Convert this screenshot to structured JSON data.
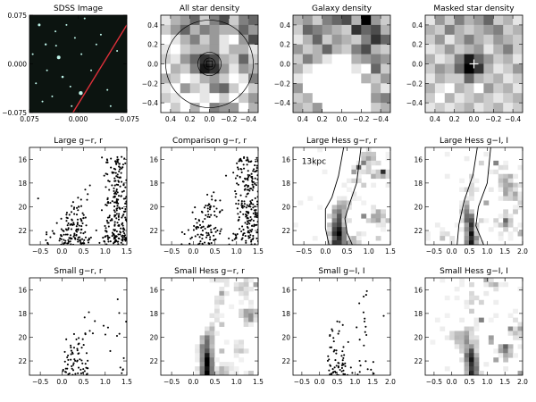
{
  "figure": {
    "annotation": "13kpc",
    "colors": {
      "ink": "#000000",
      "sdss_bg": "#0c1410",
      "sdss_star": "#bff5ea",
      "sdss_track": "#e0303a"
    }
  },
  "chart_data": [
    {
      "id": "sdss",
      "type": "image",
      "title": "SDSS Image",
      "xlim": [
        0.075,
        -0.075
      ],
      "ylim": [
        -0.075,
        0.075
      ],
      "xticks": [
        "0.075",
        "0.000",
        "-0.075"
      ],
      "yticks": [
        "-0.075",
        "0.000",
        "0.075"
      ],
      "stars": [
        [
          0.06,
          0.06,
          1.5
        ],
        [
          0.035,
          0.05,
          1
        ],
        [
          -0.01,
          0.07,
          1
        ],
        [
          0.05,
          0.03,
          1.2
        ],
        [
          0.03,
          0.01,
          2
        ],
        [
          0.005,
          0.04,
          1
        ],
        [
          -0.035,
          0.045,
          1
        ],
        [
          0.048,
          -0.01,
          1
        ],
        [
          0.024,
          -0.02,
          1.3
        ],
        [
          0.034,
          0.028,
          1
        ],
        [
          0.065,
          -0.03,
          1
        ],
        [
          -0.005,
          0.015,
          1
        ],
        [
          -0.02,
          -0.01,
          1
        ],
        [
          -0.004,
          -0.045,
          2.2
        ],
        [
          -0.045,
          -0.04,
          1
        ],
        [
          0.055,
          -0.058,
          1
        ],
        [
          0.012,
          -0.035,
          1
        ],
        [
          -0.06,
          0.02,
          1
        ],
        [
          0.04,
          -0.05,
          1
        ],
        [
          0.018,
          0.06,
          1
        ],
        [
          -0.028,
          0.03,
          1
        ],
        [
          0.07,
          0.015,
          1
        ],
        [
          -0.05,
          -0.065,
          1
        ],
        [
          0.01,
          -0.065,
          1
        ]
      ],
      "track": [
        [
          0.008,
          -0.075
        ],
        [
          -0.075,
          0.06
        ]
      ]
    },
    {
      "id": "allstar",
      "type": "heatmap",
      "title": "All star density",
      "xlim": [
        0.5,
        -0.5
      ],
      "ylim": [
        -0.5,
        0.5
      ],
      "xticks": [
        0.4,
        0.2,
        0.0,
        -0.2,
        -0.4
      ],
      "yticks": [
        -0.4,
        -0.2,
        0.0,
        0.2,
        0.4
      ],
      "values": [
        [
          0.1,
          0.3,
          0.4,
          0.6,
          0.2,
          0.5,
          0.7,
          0.2,
          0.5,
          0.6
        ],
        [
          0.2,
          0.4,
          0.6,
          0.3,
          0.5,
          0.4,
          0.3,
          0.3,
          0.6,
          0.4
        ],
        [
          0.0,
          0.1,
          0.3,
          0.5,
          0.2,
          0.4,
          0.1,
          0.0,
          0.4,
          0.7
        ],
        [
          0.1,
          0.0,
          0.2,
          0.3,
          0.3,
          0.4,
          0.1,
          0.3,
          0.3,
          0.1
        ],
        [
          0.2,
          0.1,
          0.4,
          0.6,
          0.8,
          0.7,
          0.3,
          0.2,
          0.6,
          0.2
        ],
        [
          0.0,
          0.3,
          0.2,
          0.5,
          0.9,
          0.8,
          0.4,
          0.1,
          0.4,
          0.3
        ],
        [
          0.3,
          0.2,
          0.0,
          0.1,
          0.3,
          0.4,
          0.2,
          0.0,
          0.1,
          0.5
        ],
        [
          0.1,
          0.0,
          0.4,
          0.2,
          0.1,
          0.5,
          0.6,
          0.2,
          0.0,
          0.2
        ],
        [
          0.2,
          0.1,
          0.0,
          0.0,
          0.1,
          0.0,
          0.2,
          0.0,
          0.2,
          0.4
        ],
        [
          0.0,
          0.2,
          0.0,
          0.3,
          0.0,
          0.5,
          0.4,
          0.4,
          0.0,
          0.3
        ]
      ],
      "circles": [
        0.06,
        0.12,
        0.45
      ],
      "box": 0.03
    },
    {
      "id": "galaxy",
      "type": "heatmap",
      "title": "Galaxy density",
      "xlim": [
        0.5,
        -0.5
      ],
      "ylim": [
        -0.5,
        0.5
      ],
      "xticks": [
        0.4,
        0.2,
        0.0,
        -0.2,
        -0.4
      ],
      "yticks": [
        -0.4,
        -0.2,
        0.0,
        0.2,
        0.4
      ],
      "values": [
        [
          0.3,
          0.4,
          0.2,
          0.5,
          0.6,
          0.7,
          0.3,
          1.0,
          0.4,
          0.2
        ],
        [
          0.2,
          0.6,
          0.5,
          0.4,
          0.3,
          0.2,
          0.8,
          0.6,
          0.7,
          0.3
        ],
        [
          0.1,
          0.3,
          0.6,
          0.2,
          0.4,
          0.3,
          0.2,
          0.5,
          0.8,
          0.6
        ],
        [
          0.4,
          0.2,
          0.3,
          0.6,
          0.3,
          0.2,
          0.5,
          0.7,
          0.3,
          0.2
        ],
        [
          0.2,
          0.5,
          0.3,
          0.1,
          0.0,
          0.0,
          0.3,
          0.4,
          0.5,
          0.4
        ],
        [
          0.3,
          0.1,
          0.0,
          0.0,
          0.0,
          0.0,
          0.1,
          0.0,
          0.6,
          0.2
        ],
        [
          0.1,
          0.0,
          0.0,
          0.0,
          0.0,
          0.0,
          0.0,
          0.3,
          0.2,
          0.4
        ],
        [
          0.4,
          0.0,
          0.0,
          0.0,
          0.0,
          0.0,
          0.0,
          0.0,
          0.3,
          0.1
        ],
        [
          0.2,
          0.3,
          0.0,
          0.0,
          0.0,
          0.0,
          0.0,
          0.0,
          0.4,
          0.5
        ],
        [
          0.3,
          0.2,
          0.4,
          0.0,
          0.0,
          0.0,
          0.0,
          0.0,
          0.2,
          0.3
        ]
      ]
    },
    {
      "id": "masked",
      "type": "heatmap",
      "title": "Masked star density",
      "xlim": [
        0.5,
        -0.5
      ],
      "ylim": [
        -0.5,
        0.5
      ],
      "xticks": [
        0.4,
        0.2,
        0.0,
        -0.2,
        -0.4
      ],
      "yticks": [
        -0.4,
        -0.2,
        0.0,
        0.2,
        0.4
      ],
      "values": [
        [
          0.1,
          0.4,
          0.2,
          0.5,
          0.3,
          0.4,
          0.6,
          0.2,
          0.3,
          0.1
        ],
        [
          0.3,
          0.2,
          0.5,
          0.3,
          0.2,
          0.3,
          0.4,
          0.5,
          0.2,
          0.3
        ],
        [
          0.2,
          0.4,
          0.1,
          0.3,
          0.5,
          0.3,
          0.2,
          0.4,
          0.3,
          0.2
        ],
        [
          0.1,
          0.2,
          0.4,
          0.2,
          0.3,
          0.4,
          0.1,
          0.3,
          0.5,
          0.2
        ],
        [
          0.3,
          0.1,
          0.2,
          0.5,
          0.9,
          0.6,
          0.4,
          0.2,
          0.3,
          0.1
        ],
        [
          0.2,
          0.4,
          0.3,
          0.6,
          1.0,
          0.8,
          0.3,
          0.1,
          0.2,
          0.4
        ],
        [
          0.1,
          0.3,
          0.2,
          0.2,
          0.6,
          0.3,
          0.2,
          0.3,
          0.1,
          0.2
        ],
        [
          0.3,
          0.1,
          0.0,
          0.3,
          0.2,
          0.0,
          0.4,
          0.2,
          0.3,
          0.1
        ],
        [
          0.2,
          0.0,
          0.3,
          0.1,
          0.2,
          0.3,
          0.2,
          0.1,
          0.2,
          0.3
        ],
        [
          0.1,
          0.2,
          0.1,
          0.2,
          0.3,
          0.1,
          0.2,
          0.3,
          0.1,
          0.2
        ]
      ],
      "marker": [
        0.0,
        0.0
      ]
    },
    {
      "id": "cmd_large_gr",
      "type": "scatter",
      "title": "Large g−r, r",
      "xlim": [
        -0.75,
        1.5
      ],
      "ylim": [
        23.2,
        15.0
      ],
      "xticks": [
        -0.5,
        0.0,
        0.5,
        1.0,
        1.5
      ],
      "yticks": [
        16,
        18,
        20,
        22
      ],
      "gen": {
        "seed": 11,
        "n": 420,
        "ref": [
          [
            0.28,
            22.6
          ],
          [
            0.3,
            20.5
          ],
          [
            0.45,
            19.0
          ],
          [
            0.7,
            17.3
          ],
          [
            0.9,
            15.8
          ]
        ],
        "sigma": 0.1,
        "thick": 0.3,
        "field": 0.8,
        "fxmin": -0.4
      }
    },
    {
      "id": "cmd_comp_gr",
      "type": "scatter",
      "title": "Comparison g−r, r",
      "xlim": [
        -0.75,
        1.5
      ],
      "ylim": [
        23.2,
        15.0
      ],
      "xticks": [
        -0.5,
        0.0,
        0.5,
        1.0,
        1.5
      ],
      "yticks": [
        16,
        18,
        20,
        22
      ],
      "gen": {
        "seed": 23,
        "n": 360,
        "ref": [
          [
            0.28,
            22.6
          ],
          [
            0.32,
            20.5
          ],
          [
            0.5,
            19.0
          ],
          [
            0.7,
            17.3
          ],
          [
            0.9,
            15.8
          ]
        ],
        "sigma": 0.14,
        "thick": 0.25,
        "field": 0.9,
        "fxmin": -0.1
      }
    },
    {
      "id": "hess_large_gr",
      "type": "heatmap",
      "title": "Large Hess g−r, r",
      "xlim": [
        -0.75,
        1.5
      ],
      "ylim": [
        23.2,
        15.0
      ],
      "xticks": [
        -0.5,
        0.0,
        0.5,
        1.0,
        1.5
      ],
      "yticks": [
        16,
        18,
        20,
        22
      ],
      "annotation_pos": [
        -0.55,
        16.4
      ],
      "gen": {
        "seed": 7,
        "ref": [
          [
            0.28,
            22.8
          ],
          [
            0.28,
            21.3
          ],
          [
            0.32,
            20.2
          ],
          [
            0.5,
            19.0
          ],
          [
            0.9,
            16.0
          ]
        ],
        "width": 0.16,
        "amp": 1.0,
        "noise": 0.12,
        "blobs": [
          [
            1.2,
            20.9,
            0.5
          ],
          [
            1.35,
            17.2,
            0.35
          ],
          [
            1.05,
            16.0,
            0.3
          ],
          [
            0.65,
            23.0,
            0.4
          ]
        ]
      },
      "curves": [
        [
          [
            0.08,
            23.2
          ],
          [
            0.0,
            21.8
          ],
          [
            0.0,
            20.2
          ],
          [
            0.15,
            19.2
          ],
          [
            0.3,
            17.4
          ],
          [
            0.42,
            15.0
          ]
        ],
        [
          [
            0.62,
            23.2
          ],
          [
            0.5,
            22.2
          ],
          [
            0.45,
            21.0
          ],
          [
            0.55,
            19.8
          ],
          [
            0.72,
            18.0
          ],
          [
            0.82,
            15.0
          ]
        ]
      ]
    },
    {
      "id": "hess_large_gi",
      "type": "heatmap",
      "title": "Large Hess g−I, I",
      "xlim": [
        -0.75,
        2.0
      ],
      "ylim": [
        23.2,
        15.0
      ],
      "xticks": [
        -0.5,
        0.0,
        0.5,
        1.0,
        1.5,
        2.0
      ],
      "yticks": [
        16,
        18,
        20,
        22
      ],
      "gen": {
        "seed": 19,
        "ref": [
          [
            0.55,
            22.5
          ],
          [
            0.5,
            21.0
          ],
          [
            0.38,
            20.2
          ],
          [
            0.45,
            19.0
          ],
          [
            0.7,
            17.0
          ],
          [
            0.95,
            15.0
          ]
        ],
        "width": 0.15,
        "amp": 0.95,
        "noise": 0.14,
        "blobs": [
          [
            1.6,
            18.6,
            0.45
          ],
          [
            1.45,
            17.5,
            0.35
          ],
          [
            1.9,
            19.2,
            0.3
          ],
          [
            1.55,
            21.6,
            0.4
          ],
          [
            -0.2,
            22.8,
            0.25
          ]
        ]
      },
      "curves": [
        [
          [
            0.15,
            23.2
          ],
          [
            0.2,
            21.5
          ],
          [
            0.35,
            19.5
          ],
          [
            0.6,
            17.3
          ],
          [
            0.72,
            15.0
          ]
        ],
        [
          [
            0.9,
            23.2
          ],
          [
            0.68,
            21.6
          ],
          [
            0.75,
            20.0
          ],
          [
            1.0,
            18.0
          ],
          [
            1.1,
            15.0
          ]
        ]
      ]
    },
    {
      "id": "cmd_small_gr",
      "type": "scatter",
      "title": "Small g−r, r",
      "xlim": [
        -0.75,
        1.5
      ],
      "ylim": [
        23.2,
        15.0
      ],
      "xticks": [
        -0.5,
        0.0,
        0.5,
        1.0,
        1.5
      ],
      "yticks": [
        16,
        18,
        20,
        22
      ],
      "gen": {
        "seed": 31,
        "n": 90,
        "ref": [
          [
            0.3,
            22.6
          ],
          [
            0.32,
            20.8
          ],
          [
            0.48,
            19.0
          ],
          [
            0.62,
            17.5
          ],
          [
            0.75,
            16.0
          ]
        ],
        "sigma": 0.08,
        "thick": 0.7,
        "field": 0.55,
        "fxmin": 0.0
      }
    },
    {
      "id": "hess_small_gr",
      "type": "heatmap",
      "title": "Small Hess g−r, r",
      "xlim": [
        -0.75,
        1.5
      ],
      "ylim": [
        23.2,
        15.0
      ],
      "xticks": [
        -0.5,
        0.0,
        0.5,
        1.0,
        1.5
      ],
      "yticks": [
        16,
        18,
        20,
        22
      ],
      "gen": {
        "seed": 5,
        "ref": [
          [
            0.32,
            22.4
          ],
          [
            0.3,
            21.2
          ],
          [
            0.3,
            20.2
          ],
          [
            0.45,
            19.0
          ],
          [
            0.62,
            17.5
          ]
        ],
        "width": 0.14,
        "amp": 1.0,
        "noise": 0.1,
        "blobs": [
          [
            1.3,
            18.2,
            0.55
          ],
          [
            1.1,
            15.8,
            0.35
          ],
          [
            0.7,
            23.0,
            0.35
          ],
          [
            1.05,
            21.0,
            0.25
          ]
        ]
      }
    },
    {
      "id": "cmd_small_gi",
      "type": "scatter",
      "title": "Small g−I, I",
      "xlim": [
        -0.75,
        2.0
      ],
      "ylim": [
        23.2,
        15.0
      ],
      "xticks": [
        -0.5,
        0.0,
        0.5,
        1.0,
        1.5,
        2.0
      ],
      "yticks": [
        16,
        18,
        20,
        22
      ],
      "gen": {
        "seed": 41,
        "n": 85,
        "ref": [
          [
            0.5,
            22.6
          ],
          [
            0.45,
            21.0
          ],
          [
            0.45,
            19.8
          ],
          [
            0.55,
            18.5
          ],
          [
            0.62,
            17.2
          ]
        ],
        "sigma": 0.09,
        "thick": 0.6,
        "field": 0.5,
        "fxmin": 0.2
      }
    },
    {
      "id": "hess_small_gi",
      "type": "heatmap",
      "title": "Small Hess g−I, I",
      "xlim": [
        -0.75,
        2.0
      ],
      "ylim": [
        23.2,
        15.0
      ],
      "xticks": [
        -0.5,
        0.0,
        0.5,
        1.0,
        1.5,
        2.0
      ],
      "yticks": [
        16,
        18,
        20,
        22
      ],
      "gen": {
        "seed": 13,
        "ref": [
          [
            0.58,
            22.3
          ],
          [
            0.5,
            21.0
          ],
          [
            0.45,
            19.8
          ],
          [
            0.55,
            18.5
          ],
          [
            0.62,
            17.2
          ]
        ],
        "width": 0.16,
        "amp": 0.9,
        "noise": 0.14,
        "blobs": [
          [
            1.5,
            21.2,
            0.5
          ],
          [
            1.85,
            19.4,
            0.35
          ],
          [
            1.2,
            15.6,
            0.3
          ],
          [
            0.15,
            20.0,
            0.3
          ]
        ]
      }
    }
  ]
}
